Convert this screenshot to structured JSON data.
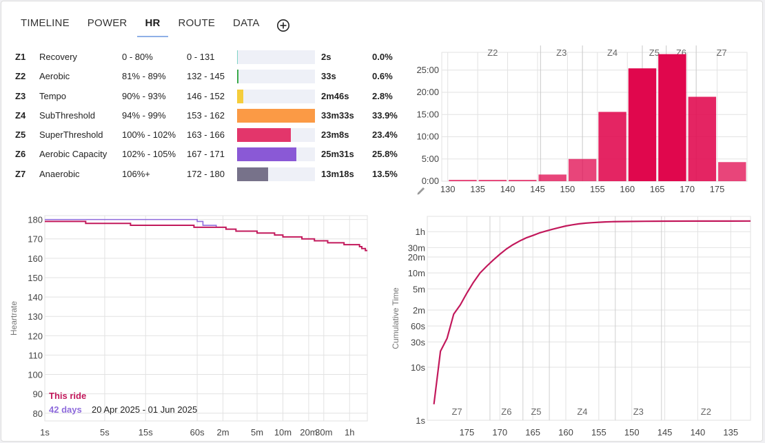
{
  "tabs": {
    "items": [
      "TIMELINE",
      "POWER",
      "HR",
      "ROUTE",
      "DATA"
    ],
    "active": "HR"
  },
  "zones": [
    {
      "id": "Z1",
      "name": "Recovery",
      "pct": "0 - 80%",
      "bpm": "0 - 131",
      "time": "2s",
      "share": "0.0%",
      "fraction": 0.0,
      "color": "#7fd3c6"
    },
    {
      "id": "Z2",
      "name": "Aerobic",
      "pct": "81% - 89%",
      "bpm": "132 - 145",
      "time": "33s",
      "share": "0.6%",
      "fraction": 0.006,
      "color": "#3aaa4a"
    },
    {
      "id": "Z3",
      "name": "Tempo",
      "pct": "90% - 93%",
      "bpm": "146 - 152",
      "time": "2m46s",
      "share": "2.8%",
      "fraction": 0.028,
      "color": "#f5cd3c"
    },
    {
      "id": "Z4",
      "name": "SubThreshold",
      "pct": "94% - 99%",
      "bpm": "153 - 162",
      "time": "33m33s",
      "share": "33.9%",
      "fraction": 0.339,
      "color": "#fb9a45"
    },
    {
      "id": "Z5",
      "name": "SuperThreshold",
      "pct": "100% - 102%",
      "bpm": "163 - 166",
      "time": "23m8s",
      "share": "23.4%",
      "fraction": 0.234,
      "color": "#e3366b"
    },
    {
      "id": "Z6",
      "name": "Aerobic Capacity",
      "pct": "102% - 105%",
      "bpm": "167 - 171",
      "time": "25m31s",
      "share": "25.8%",
      "fraction": 0.258,
      "color": "#8a59d6"
    },
    {
      "id": "Z7",
      "name": "Anaerobic",
      "pct": "106%+",
      "bpm": "172 - 180",
      "time": "13m18s",
      "share": "13.5%",
      "fraction": 0.135,
      "color": "#77728a"
    }
  ],
  "chart_data": [
    {
      "type": "bar",
      "zone_labels": [
        "Z2",
        "Z3",
        "Z4",
        "Z5",
        "Z6",
        "Z7"
      ],
      "zone_boundaries": [
        145.5,
        152.5,
        162.5,
        166.5,
        171.5
      ],
      "x_ticks": [
        "130",
        "135",
        "140",
        "145",
        "150",
        "155",
        "160",
        "165",
        "170",
        "175"
      ],
      "y_ticks": [
        "0:00",
        "5:00",
        "10:00",
        "15:00",
        "20:00",
        "25:00"
      ],
      "xlim": [
        129,
        180
      ],
      "ylim_minutes": [
        0,
        29
      ],
      "bins": [
        {
          "x0": 130,
          "x1": 135,
          "minutes": 0.3
        },
        {
          "x0": 135,
          "x1": 140,
          "minutes": 0.3
        },
        {
          "x0": 140,
          "x1": 145,
          "minutes": 0.3
        },
        {
          "x0": 145,
          "x1": 150,
          "minutes": 1.5
        },
        {
          "x0": 150,
          "x1": 155,
          "minutes": 5.0
        },
        {
          "x0": 155,
          "x1": 160,
          "minutes": 15.6
        },
        {
          "x0": 160,
          "x1": 165,
          "minutes": 25.4
        },
        {
          "x0": 165,
          "x1": 170,
          "minutes": 28.6
        },
        {
          "x0": 170,
          "x1": 175,
          "minutes": 19.0
        },
        {
          "x0": 175,
          "x1": 180,
          "minutes": 4.3
        }
      ],
      "grid": true,
      "bar_color": "#e0074d"
    },
    {
      "type": "line",
      "ylabel": "Heartrate",
      "x_scale": "log",
      "x_ticks": [
        "1s",
        "5s",
        "15s",
        "60s",
        "2m",
        "5m",
        "10m",
        "20m",
        "30m",
        "1h"
      ],
      "x_tick_seconds": [
        1,
        5,
        15,
        60,
        120,
        300,
        600,
        1200,
        1800,
        3600
      ],
      "y_ticks": [
        "80",
        "90",
        "100",
        "110",
        "120",
        "130",
        "140",
        "150",
        "160",
        "170",
        "180"
      ],
      "ylim": [
        76,
        182
      ],
      "xlim_seconds": [
        1,
        5800
      ],
      "grid": true,
      "legend": {
        "this_ride": "This ride",
        "compare_label": "42 days",
        "compare_range": "20 Apr 2025 - 01 Jun 2025",
        "placement": "bottom-left"
      },
      "series": [
        {
          "name": "This ride",
          "color": "#c2185b",
          "points": [
            [
              1,
              179
            ],
            [
              2,
              179
            ],
            [
              3,
              178
            ],
            [
              8,
              178
            ],
            [
              10,
              177
            ],
            [
              40,
              177
            ],
            [
              55,
              176
            ],
            [
              100,
              176
            ],
            [
              130,
              175
            ],
            [
              170,
              174
            ],
            [
              270,
              174
            ],
            [
              300,
              173
            ],
            [
              420,
              173
            ],
            [
              480,
              172
            ],
            [
              600,
              171
            ],
            [
              900,
              171
            ],
            [
              1000,
              170
            ],
            [
              1300,
              170
            ],
            [
              1400,
              169
            ],
            [
              1800,
              169
            ],
            [
              2000,
              168
            ],
            [
              2900,
              168
            ],
            [
              3100,
              167
            ],
            [
              4500,
              167
            ],
            [
              4700,
              166
            ],
            [
              5000,
              165
            ],
            [
              5300,
              165
            ],
            [
              5500,
              164
            ],
            [
              5800,
              164
            ]
          ]
        },
        {
          "name": "42 days",
          "color": "#8e6bdc",
          "points": [
            [
              1,
              180
            ],
            [
              50,
              180
            ],
            [
              60,
              179
            ],
            [
              70,
              177
            ],
            [
              100,
              176
            ]
          ]
        }
      ]
    },
    {
      "type": "line",
      "ylabel": "Cumulative Time",
      "y_scale": "log",
      "zone_labels": [
        "Z7",
        "Z6",
        "Z5",
        "Z4",
        "Z3",
        "Z2"
      ],
      "zone_boundaries": [
        171.5,
        166.5,
        162.5,
        152.5,
        145.5
      ],
      "x_ticks": [
        "175",
        "170",
        "165",
        "160",
        "155",
        "150",
        "145",
        "140",
        "135"
      ],
      "y_ticks": [
        "1s",
        "10s",
        "30s",
        "60s",
        "2m",
        "5m",
        "10m",
        "20m",
        "30m",
        "1h"
      ],
      "y_tick_seconds": [
        1,
        10,
        30,
        60,
        120,
        300,
        600,
        1200,
        1800,
        3600
      ],
      "xlim": [
        181,
        132
      ],
      "ylim_seconds": [
        1,
        7000
      ],
      "grid": true,
      "series": [
        {
          "name": "",
          "color": "#c2185b",
          "points": [
            [
              180,
              2
            ],
            [
              179,
              20
            ],
            [
              178,
              35
            ],
            [
              177,
              100
            ],
            [
              176,
              150
            ],
            [
              175,
              250
            ],
            [
              174,
              400
            ],
            [
              173,
              600
            ],
            [
              172,
              800
            ],
            [
              171,
              1050
            ],
            [
              170,
              1350
            ],
            [
              169,
              1700
            ],
            [
              168,
              2050
            ],
            [
              167,
              2400
            ],
            [
              166,
              2750
            ],
            [
              165,
              3050
            ],
            [
              164,
              3400
            ],
            [
              163,
              3700
            ],
            [
              162,
              4000
            ],
            [
              161,
              4300
            ],
            [
              160,
              4600
            ],
            [
              159,
              4850
            ],
            [
              158,
              5050
            ],
            [
              157,
              5200
            ],
            [
              156,
              5320
            ],
            [
              155,
              5420
            ],
            [
              154,
              5500
            ],
            [
              153,
              5550
            ],
            [
              151,
              5600
            ],
            [
              148,
              5640
            ],
            [
              145,
              5670
            ],
            [
              140,
              5690
            ],
            [
              135,
              5700
            ],
            [
              132,
              5705
            ]
          ]
        }
      ]
    }
  ]
}
